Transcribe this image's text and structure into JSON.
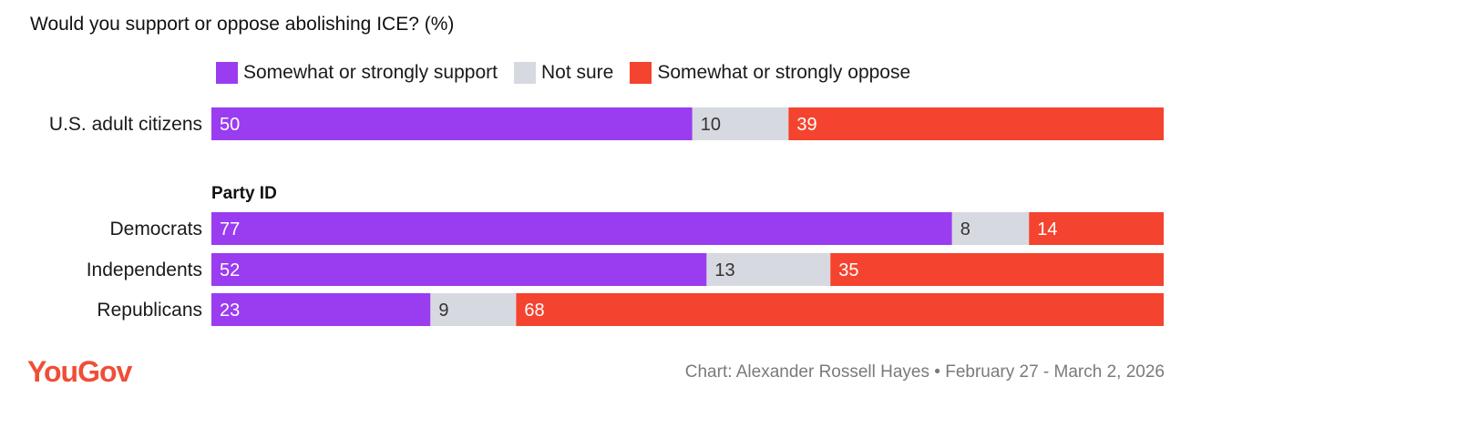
{
  "chart_data": {
    "type": "bar",
    "orientation": "horizontal",
    "stacked": true,
    "title": "Would you support or oppose abolishing ICE? (%)",
    "legend_position": "top",
    "series": [
      {
        "name": "Somewhat or strongly support",
        "color": "#9a3cf0",
        "values": [
          50,
          77,
          52,
          23
        ]
      },
      {
        "name": "Not sure",
        "color": "#d7d9e0",
        "values": [
          10,
          8,
          13,
          9
        ]
      },
      {
        "name": "Somewhat or strongly oppose",
        "color": "#f4432e",
        "values": [
          39,
          14,
          35,
          68
        ]
      }
    ],
    "categories": [
      "U.S. adult citizens",
      "Democrats",
      "Independents",
      "Republicans"
    ],
    "groups": [
      {
        "label": "",
        "categories": [
          "U.S. adult citizens"
        ]
      },
      {
        "label": "Party ID",
        "categories": [
          "Democrats",
          "Independents",
          "Republicans"
        ]
      }
    ],
    "xlim": [
      0,
      100
    ],
    "grid": false
  },
  "footer": {
    "brand": "YouGov",
    "source": "Chart: Alexander Rossell Hayes • February 27 - March 2, 2026"
  },
  "colors": {
    "label_on_dark": "#ffffff",
    "label_on_light": "#333333"
  }
}
